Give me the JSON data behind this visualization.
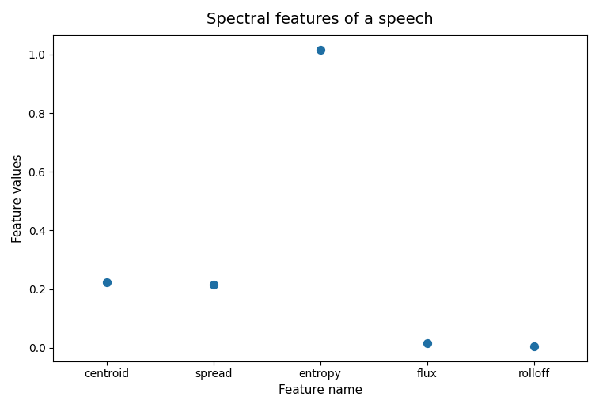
{
  "title": "Spectral features of a speech",
  "xlabel": "Feature name",
  "ylabel": "Feature values",
  "categories": [
    "centroid",
    "spread",
    "entropy",
    "flux",
    "rolloff"
  ],
  "values": [
    0.223,
    0.214,
    1.017,
    0.017,
    0.005
  ],
  "marker_color": "#1f6fa4",
  "marker_size": 50,
  "marker_style": "o",
  "title_fontsize": 14,
  "label_fontsize": 11,
  "tick_fontsize": 10,
  "figsize": [
    7.57,
    5.16
  ],
  "dpi": 100
}
